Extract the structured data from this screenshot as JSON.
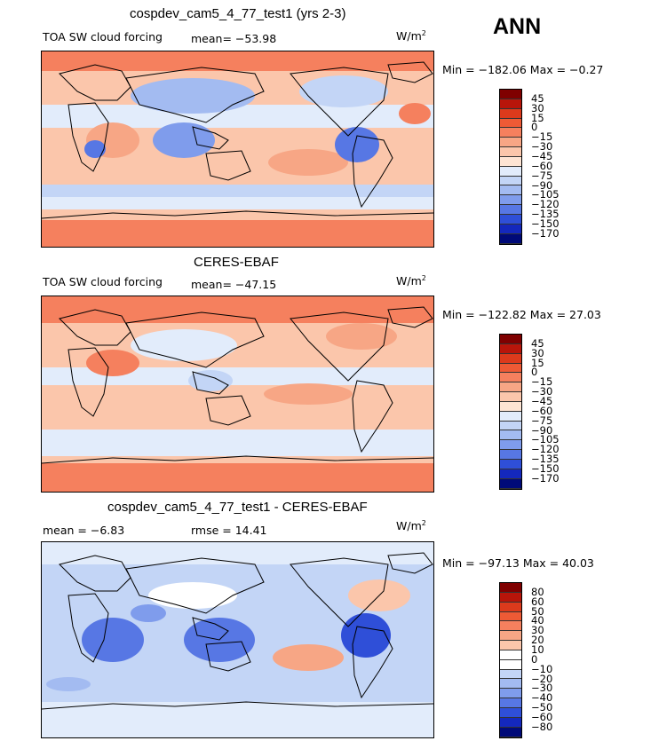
{
  "season": "ANN",
  "units": "W/m",
  "units_sup": "2",
  "colors": {
    "ocean_base": "#f9dccb",
    "land_outline": "#000000",
    "diff_base": "#cfdcf6"
  },
  "panels": [
    {
      "title": "cospdev_cam5_4_77_test1 (yrs 2-3)",
      "variable": "TOA SW cloud forcing",
      "stat": "mean= −53.98",
      "minmax": "Min = −182.06 Max =  −0.27",
      "colorbar": {
        "levels": [
          "45",
          "30",
          "15",
          "0",
          "−15",
          "−30",
          "−45",
          "−60",
          "−75",
          "−90",
          "−105",
          "−120",
          "−135",
          "−150",
          "−170"
        ],
        "colors": [
          "#7f0000",
          "#b8150a",
          "#dc3a1c",
          "#ee5a35",
          "#f5805e",
          "#f7a685",
          "#fbc6ab",
          "#fde4d3",
          "#e2ecfb",
          "#c3d5f6",
          "#a3bbf1",
          "#7f9cec",
          "#5777e4",
          "#2f4fd8",
          "#1428bd",
          "#000a78"
        ]
      }
    },
    {
      "title": "CERES-EBAF",
      "variable": "TOA SW cloud forcing",
      "stat": "mean= −47.15",
      "minmax": "Min = −122.82 Max =  27.03",
      "colorbar": {
        "levels": [
          "45",
          "30",
          "15",
          "0",
          "−15",
          "−30",
          "−45",
          "−60",
          "−75",
          "−90",
          "−105",
          "−120",
          "−135",
          "−150",
          "−170"
        ],
        "colors": [
          "#7f0000",
          "#b8150a",
          "#dc3a1c",
          "#ee5a35",
          "#f5805e",
          "#f7a685",
          "#fbc6ab",
          "#fde4d3",
          "#e2ecfb",
          "#c3d5f6",
          "#a3bbf1",
          "#7f9cec",
          "#5777e4",
          "#2f4fd8",
          "#1428bd",
          "#000a78"
        ]
      }
    },
    {
      "title": "cospdev_cam5_4_77_test1 - CERES-EBAF",
      "stat": "mean =   −6.83",
      "rmse": "rmse =   14.41",
      "minmax": "Min = −97.13 Max =  40.03",
      "colorbar": {
        "levels": [
          "80",
          "60",
          "50",
          "40",
          "30",
          "20",
          "10",
          "0",
          "−10",
          "−20",
          "−30",
          "−40",
          "−50",
          "−60",
          "−80"
        ],
        "colors": [
          "#7f0000",
          "#b8150a",
          "#dc3a1c",
          "#ee5a35",
          "#f5805e",
          "#f7a685",
          "#fbc6ab",
          "#ffffff",
          "#ffffff",
          "#c3d5f6",
          "#a3bbf1",
          "#7f9cec",
          "#5777e4",
          "#2f4fd8",
          "#1428bd",
          "#000a78"
        ]
      }
    }
  ]
}
